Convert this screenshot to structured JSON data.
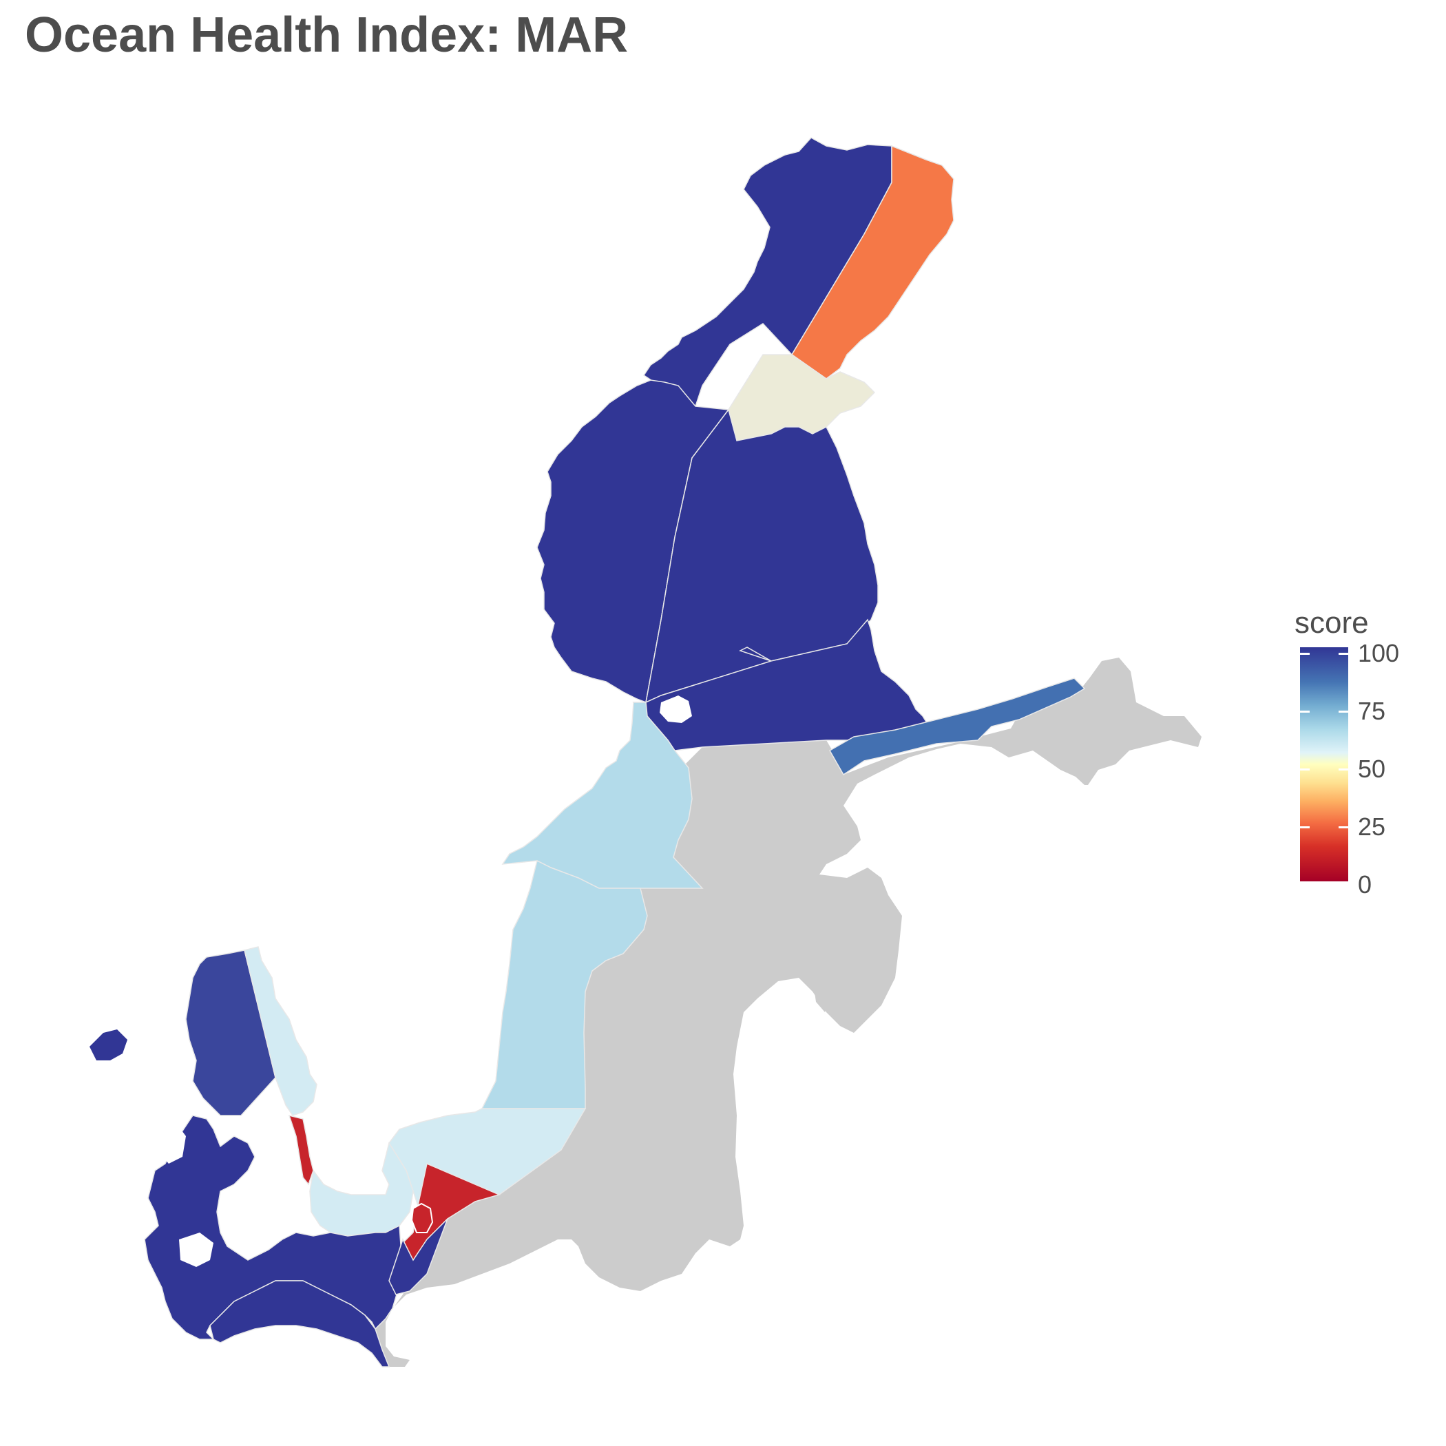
{
  "title": "Ocean Health Index: MAR",
  "legend": {
    "title": "score",
    "ticks": [
      "100",
      "75",
      "50",
      "25",
      "0"
    ],
    "tick_values": [
      100,
      75,
      50,
      25,
      0
    ],
    "scale_min": 0,
    "scale_max": 100
  },
  "colors": {
    "no_data": "#cccccc",
    "border": "#e8e8e8",
    "title_text": "#4d4d4d"
  },
  "regions": [
    {
      "id": "gulf-bothnia-bay-west",
      "score": 100
    },
    {
      "id": "gulf-bothnia-bay-east",
      "score": 35
    },
    {
      "id": "gulf-bothnia-bay-southeast",
      "score": 55
    },
    {
      "id": "bothnian-sea-west",
      "score": 100
    },
    {
      "id": "bothnian-sea-east",
      "score": 100
    },
    {
      "id": "aland-sea",
      "score": 100
    },
    {
      "id": "gulf-finland-north",
      "score": 88
    },
    {
      "id": "stockholm-archipelago",
      "score": 70
    },
    {
      "id": "northern-baltic-proper-west",
      "score": 70
    },
    {
      "id": "western-gotland-basin",
      "score": 70
    },
    {
      "id": "bornholm-basin-sweden",
      "score": 67
    },
    {
      "id": "bornholm-island-region",
      "score": 10
    },
    {
      "id": "kattegat-denmark",
      "score": 97
    },
    {
      "id": "kattegat-sweden",
      "score": 67
    },
    {
      "id": "the-sound-sweden",
      "score": 10
    },
    {
      "id": "arkona-basin-sweden",
      "score": 67
    },
    {
      "id": "danish-straits",
      "score": 100
    },
    {
      "id": "arkona-basin-denmark",
      "score": 100
    },
    {
      "id": "kiel-bay",
      "score": 100
    },
    {
      "id": "bay-mecklenburg",
      "score": 100
    },
    {
      "id": "bornholm-basin-denmark",
      "score": 100
    },
    {
      "id": "eastern-baltic-no-data",
      "score": null
    }
  ]
}
